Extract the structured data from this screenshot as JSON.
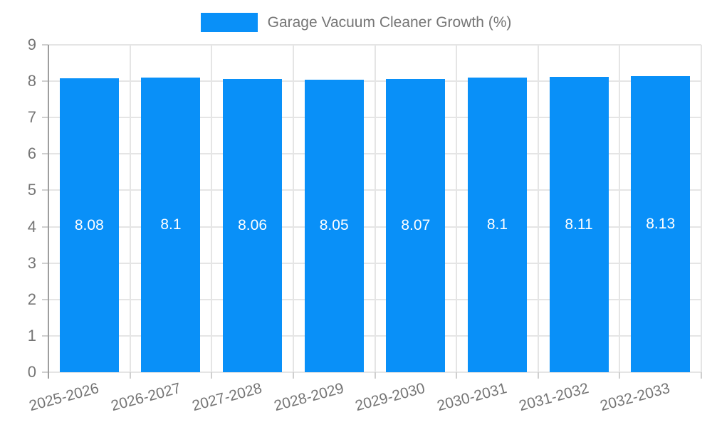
{
  "legend": {
    "label": "Garage Vacuum Cleaner Growth (%)"
  },
  "chart_data": {
    "type": "bar",
    "title": "Garage Vacuum Cleaner Growth (%)",
    "categories": [
      "2025-2026",
      "2026-2027",
      "2027-2028",
      "2028-2029",
      "2029-2030",
      "2030-2031",
      "2031-2032",
      "2032-2033"
    ],
    "values": [
      8.08,
      8.1,
      8.06,
      8.05,
      8.07,
      8.1,
      8.11,
      8.13
    ],
    "bar_labels": [
      "8.08",
      "8.1",
      "8.06",
      "8.05",
      "8.07",
      "8.1",
      "8.11",
      "8.13"
    ],
    "xlabel": "",
    "ylabel": "",
    "ylim": [
      0,
      9
    ],
    "yticks": [
      0,
      1,
      2,
      3,
      4,
      5,
      6,
      7,
      8,
      9
    ],
    "grid": true,
    "legend_position": "top",
    "colors": {
      "bar": "#0990f8",
      "bar_label_text": "#ffffff",
      "axis_text": "#757575",
      "gridline": "#e5e5e5",
      "axis_line": "#9e9e9e",
      "tick": "#cfcfcf",
      "background": "#ffffff"
    }
  }
}
